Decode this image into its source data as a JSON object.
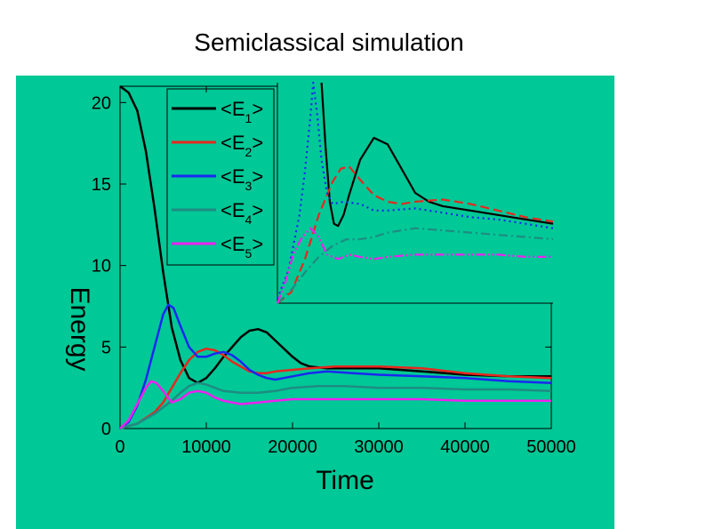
{
  "slide": {
    "title": "Semiclassical simulation"
  },
  "chart_data": {
    "type": "line",
    "xlabel": "Time",
    "ylabel": "Energy",
    "xlim": [
      0,
      50000
    ],
    "ylim": [
      0,
      21
    ],
    "xticks": [
      "0",
      "10000",
      "20000",
      "30000",
      "40000",
      "50000"
    ],
    "yticks": [
      "0",
      "5",
      "10",
      "15",
      "20"
    ],
    "colors": {
      "E1": "#000000",
      "E2": "#e8281e",
      "E3": "#1a28f0",
      "E4": "#1e8c82",
      "E5": "#f020f0"
    },
    "legend": [
      {
        "id": "E1",
        "pre": "<E",
        "sub": "1",
        "post": ">"
      },
      {
        "id": "E2",
        "pre": "<E",
        "sub": "2",
        "post": ">"
      },
      {
        "id": "E3",
        "pre": "<E",
        "sub": "3",
        "post": ">"
      },
      {
        "id": "E4",
        "pre": "<E",
        "sub": "4",
        "post": ">"
      },
      {
        "id": "E5",
        "pre": "<E",
        "sub": "5",
        "post": ">"
      }
    ],
    "series": [
      {
        "id": "E1",
        "name": "<E1>",
        "x": [
          0,
          1000,
          2000,
          3000,
          4000,
          5000,
          6000,
          7000,
          8000,
          9000,
          10000,
          11000,
          12000,
          13000,
          14000,
          15000,
          16000,
          17000,
          18000,
          19000,
          20000,
          21000,
          22000,
          24000,
          26000,
          30000,
          35000,
          40000,
          45000,
          50000
        ],
        "y": [
          21.0,
          20.6,
          19.5,
          17.0,
          13.5,
          9.6,
          6.2,
          4.2,
          3.1,
          2.8,
          3.1,
          3.7,
          4.4,
          5.0,
          5.6,
          6.0,
          6.1,
          5.9,
          5.4,
          4.9,
          4.4,
          4.0,
          3.8,
          3.7,
          3.7,
          3.7,
          3.5,
          3.3,
          3.2,
          3.2
        ]
      },
      {
        "id": "E2",
        "name": "<E2>",
        "x": [
          0,
          2000,
          4000,
          5000,
          6000,
          7000,
          8000,
          9000,
          10000,
          11000,
          12000,
          13000,
          14000,
          15000,
          16000,
          17000,
          18000,
          20000,
          22000,
          25000,
          30000,
          35000,
          40000,
          45000,
          50000
        ],
        "y": [
          0,
          0.3,
          1.0,
          1.6,
          2.5,
          3.4,
          4.2,
          4.7,
          4.9,
          4.8,
          4.5,
          4.1,
          3.8,
          3.5,
          3.4,
          3.4,
          3.5,
          3.6,
          3.7,
          3.8,
          3.8,
          3.7,
          3.4,
          3.2,
          3.1
        ]
      },
      {
        "id": "E3",
        "name": "<E3>",
        "x": [
          0,
          1000,
          2000,
          3000,
          4000,
          5000,
          5600,
          6200,
          7000,
          8000,
          9000,
          10000,
          11000,
          12000,
          13000,
          14000,
          15000,
          16000,
          17000,
          18000,
          19000,
          20000,
          22000,
          24000,
          27000,
          30000,
          35000,
          40000,
          45000,
          50000
        ],
        "y": [
          0,
          0.4,
          1.4,
          3.0,
          5.0,
          7.0,
          7.6,
          7.4,
          6.3,
          5.0,
          4.4,
          4.4,
          4.6,
          4.7,
          4.5,
          4.1,
          3.6,
          3.3,
          3.1,
          3.0,
          3.1,
          3.2,
          3.4,
          3.5,
          3.4,
          3.3,
          3.2,
          3.1,
          2.9,
          2.8
        ]
      },
      {
        "id": "E4",
        "name": "<E4>",
        "x": [
          0,
          2000,
          4000,
          6000,
          7000,
          8000,
          9000,
          10000,
          11000,
          12000,
          14000,
          16000,
          18000,
          20000,
          23000,
          26000,
          30000,
          35000,
          40000,
          45000,
          50000
        ],
        "y": [
          0,
          0.3,
          0.9,
          1.7,
          2.2,
          2.6,
          2.8,
          2.7,
          2.5,
          2.3,
          2.2,
          2.2,
          2.3,
          2.5,
          2.6,
          2.6,
          2.5,
          2.5,
          2.4,
          2.4,
          2.3
        ]
      },
      {
        "id": "E5",
        "name": "<E5>",
        "x": [
          0,
          1000,
          2000,
          3000,
          3600,
          4200,
          5000,
          6000,
          7000,
          8000,
          9000,
          10000,
          11000,
          12000,
          13000,
          14000,
          16000,
          18000,
          20000,
          23000,
          26000,
          30000,
          35000,
          40000,
          45000,
          50000
        ],
        "y": [
          0,
          0.5,
          1.5,
          2.5,
          2.9,
          2.8,
          2.3,
          1.6,
          1.8,
          2.2,
          2.3,
          2.2,
          1.9,
          1.7,
          1.6,
          1.5,
          1.6,
          1.7,
          1.8,
          1.8,
          1.8,
          1.8,
          1.8,
          1.7,
          1.7,
          1.7
        ]
      }
    ],
    "inset": {
      "xlim": [
        0,
        10
      ],
      "ylim": [
        0,
        10
      ],
      "series": [
        {
          "id": "E1",
          "style": "solid",
          "x": [
            1.6,
            1.75,
            1.9,
            2.05,
            2.2,
            2.4,
            2.6,
            3.0,
            3.5,
            4.0,
            4.5,
            5.0,
            5.5,
            6.0,
            7.0,
            8.0,
            9.0,
            10.0
          ],
          "y": [
            10.0,
            7.0,
            4.6,
            3.6,
            3.5,
            4.0,
            4.9,
            6.5,
            7.5,
            7.2,
            6.1,
            5.0,
            4.6,
            4.4,
            4.2,
            4.0,
            3.8,
            3.6
          ]
        },
        {
          "id": "E2",
          "style": "dashed",
          "x": [
            0,
            0.5,
            1.0,
            1.5,
            2.0,
            2.3,
            2.6,
            3.0,
            3.5,
            4.0,
            4.5,
            5.0,
            6.0,
            7.0,
            8.0,
            9.0,
            10.0
          ],
          "y": [
            0.0,
            0.5,
            2.0,
            4.0,
            5.5,
            6.1,
            6.2,
            5.6,
            4.9,
            4.6,
            4.5,
            4.6,
            4.7,
            4.5,
            4.2,
            3.9,
            3.7
          ]
        },
        {
          "id": "E3",
          "style": "dotted",
          "x": [
            0,
            0.4,
            0.8,
            1.0,
            1.2,
            1.3,
            1.45,
            1.6,
            1.8,
            2.0,
            2.4,
            3.0,
            3.5,
            4.0,
            5.0,
            6.0,
            7.0,
            8.0,
            9.0,
            10.0
          ],
          "y": [
            0.2,
            1.5,
            4.0,
            6.0,
            8.5,
            10.0,
            8.5,
            6.5,
            5.0,
            4.5,
            4.6,
            4.5,
            4.2,
            4.2,
            4.3,
            4.1,
            3.9,
            3.8,
            3.6,
            3.4
          ]
        },
        {
          "id": "E4",
          "style": "dashdot",
          "x": [
            0,
            0.5,
            1.0,
            1.5,
            2.0,
            2.5,
            3.0,
            3.5,
            4.0,
            5.0,
            6.0,
            7.0,
            8.0,
            9.0,
            10.0
          ],
          "y": [
            0.0,
            0.6,
            1.4,
            2.1,
            2.6,
            2.9,
            2.9,
            3.0,
            3.2,
            3.4,
            3.3,
            3.2,
            3.1,
            3.0,
            2.9
          ]
        },
        {
          "id": "E5",
          "style": "dashdotdot",
          "x": [
            0,
            0.3,
            0.6,
            0.9,
            1.2,
            1.5,
            1.8,
            2.2,
            2.6,
            3.0,
            3.5,
            4.0,
            5.0,
            6.0,
            7.0,
            8.0,
            9.0,
            10.0
          ],
          "y": [
            0.0,
            1.0,
            2.3,
            3.0,
            3.4,
            3.0,
            2.2,
            2.0,
            2.2,
            2.1,
            2.0,
            2.1,
            2.2,
            2.2,
            2.2,
            2.2,
            2.1,
            2.1
          ]
        }
      ]
    }
  }
}
